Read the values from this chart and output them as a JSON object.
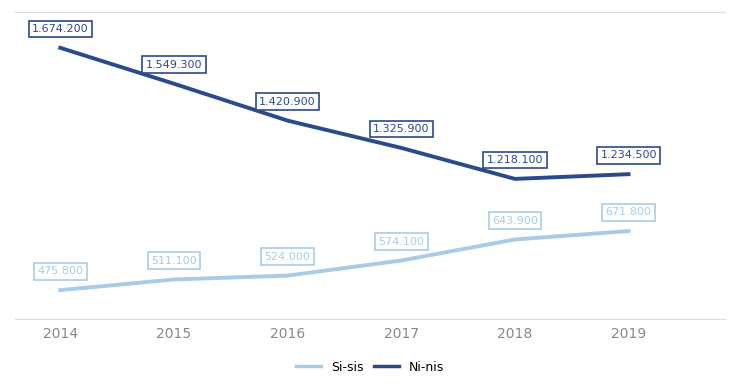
{
  "years": [
    2014,
    2015,
    2016,
    2017,
    2018,
    2019
  ],
  "ninis": [
    1674200,
    1549300,
    1420900,
    1325900,
    1218100,
    1234500
  ],
  "sisis": [
    475800,
    511100,
    524000,
    574100,
    643900,
    671800
  ],
  "ninis_labels": [
    "1.674.200",
    "1.549.300",
    "1.420.900",
    "1.325.900",
    "1.218.100",
    "1.234.500"
  ],
  "sisis_labels": [
    "475.800",
    "511.100",
    "524.000",
    "574.100",
    "643.900",
    "671.800"
  ],
  "ninis_color": "#2b4a8c",
  "sisis_color": "#a8cce8",
  "annotation_ninis_border": "#2b4a8c",
  "annotation_sisis_border": "#a8cce8",
  "annotation_bg": "#ffffff",
  "background_color": "#ffffff",
  "grid_color": "#d8dde6",
  "legend_sisis": "Si-sis",
  "legend_ninis": "Ni-nis",
  "linewidth": 2.8,
  "annotation_fontsize": 8.0,
  "tick_color": "#888888",
  "tick_fontsize": 10
}
